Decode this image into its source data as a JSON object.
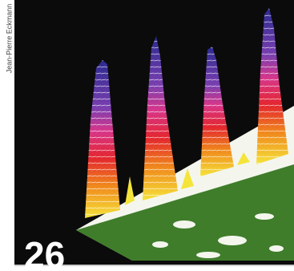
{
  "credit": "Jean-Pierre Eckmann",
  "page_number": "26"
}
